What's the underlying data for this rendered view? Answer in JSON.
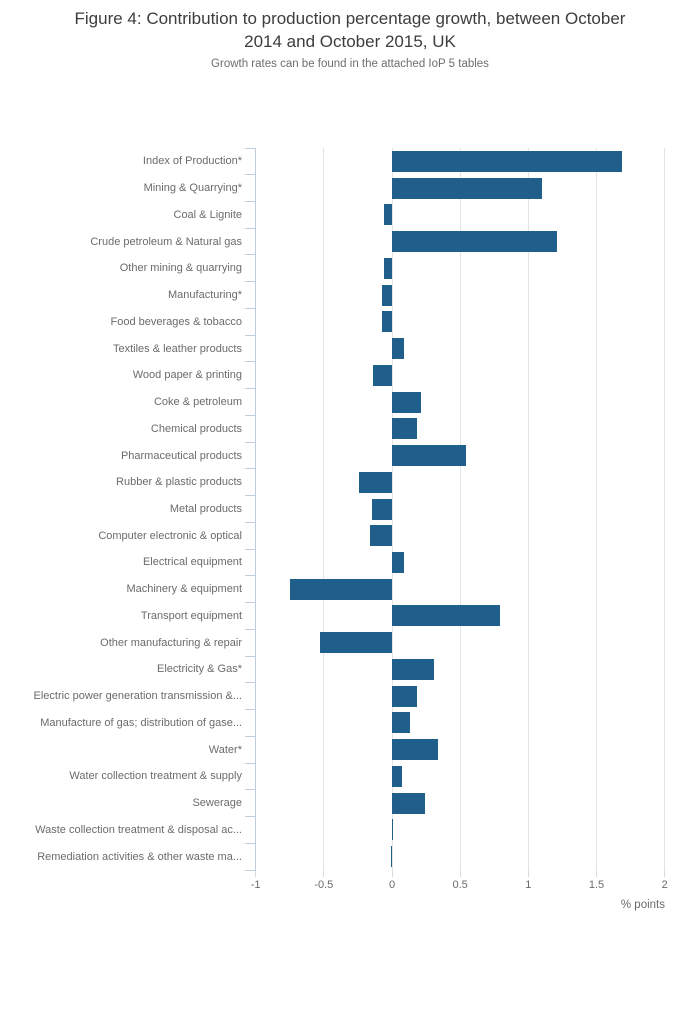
{
  "figure": {
    "title": "Figure 4: Contribution to production percentage growth, between October 2014 and October 2015, UK",
    "title_lines": [
      "Figure 4: Contribution to production percentage growth, between October",
      "2014 and October 2015, UK"
    ],
    "subtitle": "Growth rates can be found in the attached IoP 5 tables"
  },
  "colors": {
    "bar": "#205f8c",
    "axis_line": "#bfcddd",
    "gridline": "#e4e4e4",
    "tick": "#d9d9d9",
    "title_text": "#3d3d3d",
    "label_text": "#6b6b6b"
  },
  "chart_data": {
    "type": "bar",
    "orientation": "horizontal",
    "title": "Figure 4: Contribution to production percentage growth, between October 2014 and October 2015, UK",
    "subtitle": "Growth rates can be found in the attached IoP 5 tables",
    "xlabel": "% points",
    "ylabel": "",
    "xlim": [
      -1,
      2
    ],
    "x_ticks": [
      -1,
      -0.5,
      0,
      0.5,
      1,
      1.5,
      2
    ],
    "grid": true,
    "legend": "none",
    "categories": [
      "Index of Production*",
      "Mining & Quarrying*",
      "Coal & Lignite",
      "Crude petroleum & Natural gas",
      "Other mining & quarrying",
      "Manufacturing*",
      "Food beverages & tobacco",
      "Textiles & leather products",
      "Wood paper & printing",
      "Coke & petroleum",
      "Chemical products",
      "Pharmaceutical products",
      "Rubber & plastic products",
      "Metal products",
      "Computer electronic & optical",
      "Electrical equipment",
      "Machinery & equipment",
      "Transport equipment",
      "Other manufacturing & repair",
      "Electricity & Gas*",
      "Electric power generation transmission &...",
      "Manufacture of gas; distribution of gase...",
      "Water*",
      "Water collection treatment & supply",
      "Sewerage",
      "Waste collection treatment & disposal ac...",
      "Remediation activities & other waste ma..."
    ],
    "values": [
      1.69,
      1.1,
      -0.06,
      1.21,
      -0.06,
      -0.07,
      -0.07,
      0.09,
      -0.14,
      0.21,
      0.18,
      0.54,
      -0.24,
      -0.15,
      -0.16,
      0.09,
      -0.75,
      0.79,
      -0.53,
      0.31,
      0.18,
      0.13,
      0.34,
      0.07,
      0.24,
      0.01,
      -0.01
    ]
  }
}
